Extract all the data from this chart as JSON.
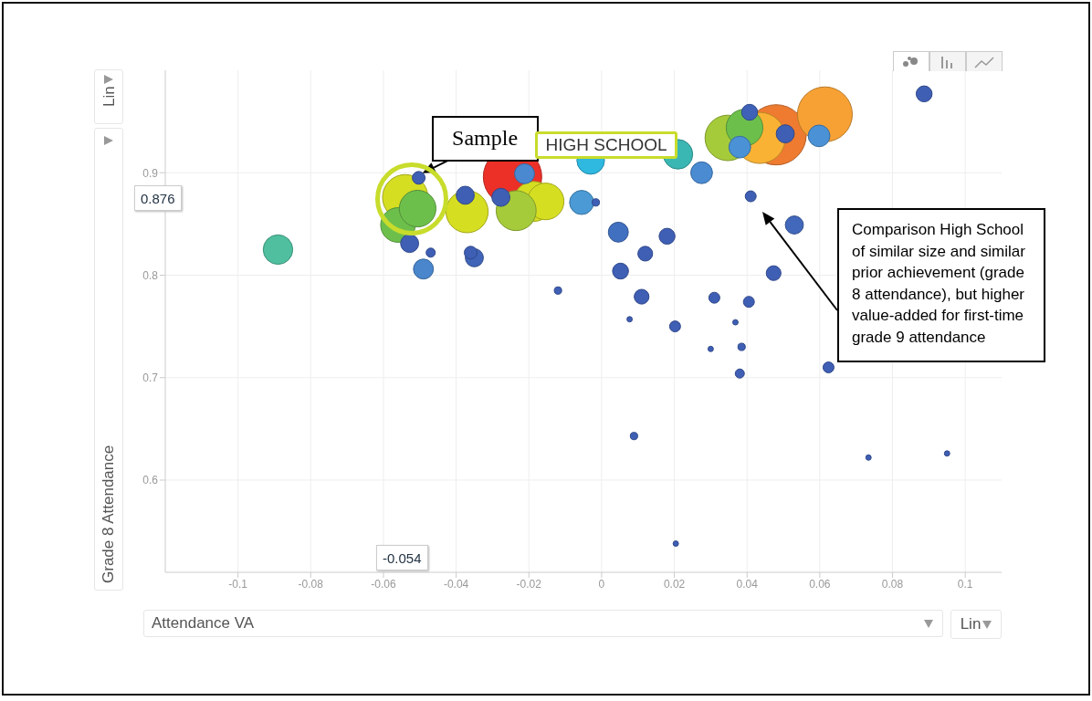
{
  "chart_data": {
    "type": "bubble",
    "xlabel": "Attendance VA",
    "ylabel": "Grade 8 Attendance",
    "xlim": [
      -0.12,
      0.11
    ],
    "ylim": [
      0.51,
      1.0
    ],
    "xticks": [
      -0.1,
      -0.08,
      -0.06,
      -0.04,
      -0.02,
      0,
      0.02,
      0.04,
      0.06,
      0.08,
      0.1
    ],
    "yticks": [
      0.6,
      0.7,
      0.8,
      0.9
    ],
    "grid": true,
    "x": [
      0.048,
      -0.0245,
      0.0614,
      0.0435,
      -0.054,
      0.0347,
      -0.037,
      -0.0187,
      -0.0154,
      -0.0235,
      -0.056,
      -0.0506,
      0.0393,
      -0.089,
      0.021,
      -0.003,
      -0.0055,
      0.0598,
      0.038,
      0.0275,
      -0.0212,
      -0.049,
      0.0046,
      -0.0528,
      -0.0375,
      -0.035,
      -0.0277,
      0.0505,
      0.053,
      0.0887,
      0.0407,
      0.018,
      0.0052,
      0.012,
      0.011,
      0.0473,
      -0.036,
      -0.0503,
      0.041,
      0.031,
      0.0405,
      0.0202,
      0.0624,
      -0.047,
      0.038,
      -0.012,
      0.0385,
      0.0089,
      -0.0016,
      0.0077,
      0.0368,
      0.03,
      0.0734,
      0.095,
      0.0204
    ],
    "values": [
      0.937,
      0.896,
      0.957,
      0.934,
      0.876,
      0.934,
      0.862,
      0.872,
      0.872,
      0.863,
      0.849,
      0.865,
      0.944,
      0.825,
      0.918,
      0.912,
      0.871,
      0.936,
      0.925,
      0.9,
      0.899,
      0.806,
      0.842,
      0.831,
      0.878,
      0.817,
      0.876,
      0.938,
      0.849,
      0.977,
      0.959,
      0.838,
      0.804,
      0.821,
      0.779,
      0.802,
      0.822,
      0.895,
      0.877,
      0.778,
      0.774,
      0.75,
      0.71,
      0.822,
      0.704,
      0.785,
      0.73,
      0.643,
      0.871,
      0.757,
      0.754,
      0.728,
      0.622,
      0.626,
      0.538
    ],
    "sizes": [
      1,
      0.94,
      0.83,
      0.72,
      0.57,
      0.57,
      0.49,
      0.44,
      0.37,
      0.44,
      0.33,
      0.37,
      0.37,
      0.24,
      0.24,
      0.21,
      0.16,
      0.13,
      0.13,
      0.13,
      0.11,
      0.11,
      0.11,
      0.09,
      0.09,
      0.09,
      0.09,
      0.09,
      0.09,
      0.07,
      0.07,
      0.07,
      0.07,
      0.06,
      0.06,
      0.06,
      0.045,
      0.045,
      0.033,
      0.033,
      0.033,
      0.033,
      0.033,
      0.023,
      0.023,
      0.015,
      0.015,
      0.015,
      0.015,
      0.008,
      0.008,
      0.008,
      0.008,
      0.008,
      0.008
    ],
    "colors": [
      "#ee7b30",
      "#ec3028",
      "#f7a135",
      "#f9b234",
      "#d6de22",
      "#a6cb3a",
      "#d6de22",
      "#d6de22",
      "#d6de22",
      "#a6cb3a",
      "#6dbf4c",
      "#6dbf4c",
      "#6dbf4c",
      "#4fbf9f",
      "#3bb7b3",
      "#2fb8e0",
      "#4b9ad6",
      "#4b91d5",
      "#4b91d5",
      "#4b8bd2",
      "#4a88d0",
      "#4a86cc",
      "#4270c0",
      "#3f5fb5",
      "#3f5fb5",
      "#4064b8",
      "#3f5fb5",
      "#3f5fb5",
      "#4268bb",
      "#3f5fb5",
      "#3f62b8",
      "#3f5fb5",
      "#3f5fb5",
      "#3f5fb5",
      "#3f5fb5",
      "#3f5fb5",
      "#3f5fb5",
      "#3f5fb5",
      "#3f5fb5",
      "#3f5fb5",
      "#3f5fb5",
      "#3f5fb5",
      "#3f5fb5",
      "#3f5fb5",
      "#3f5fb5",
      "#3f5fb5",
      "#3f5fb5",
      "#3f5fb5",
      "#3f5fb5",
      "#3f5fb5",
      "#3f5fb5",
      "#3f5fb5",
      "#3f5fb5",
      "#3f5fb5",
      "#3f5fb5"
    ],
    "annotations": [
      {
        "text": "Sample",
        "x": -0.0503,
        "y": 0.895
      },
      "HIGH SCHOOL",
      "Comparison High School of similar size and similar prior achievement (grade 8 attendance), but higher value-added for first-time grade 9 attendance",
      "0.876",
      "-0.054",
      "Lin",
      "Lin"
    ]
  }
}
